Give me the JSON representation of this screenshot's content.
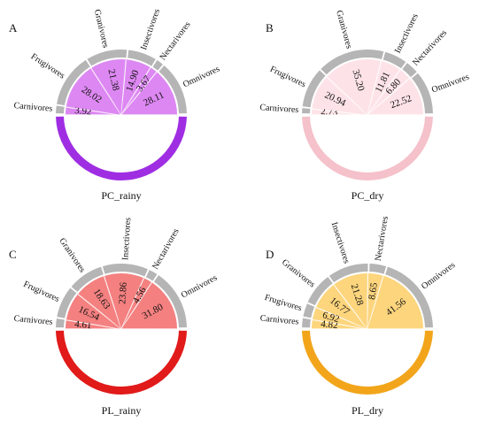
{
  "figure": {
    "categories": [
      "Carnivores",
      "Frugivores",
      "Granivores",
      "Insectivores",
      "Nectarivores",
      "Omnivores"
    ]
  },
  "chart_data": [
    {
      "type": "pie",
      "panel": "A",
      "title": "PC_rainy",
      "fill_color": "#dd88f2",
      "band_color": "#9f2ee3",
      "categories": [
        "Carnivores",
        "Frugivores",
        "Granivores",
        "Insectivores",
        "Nectarivores",
        "Omnivores"
      ],
      "value_labels": [
        "3.92",
        "28.02",
        "21.38",
        "14.90",
        "3.67",
        "28.11"
      ],
      "values": [
        3.92,
        28.02,
        21.38,
        14.9,
        3.67,
        28.11
      ]
    },
    {
      "type": "pie",
      "panel": "B",
      "title": "PC_dry",
      "fill_color": "#fde3e7",
      "band_color": "#f5c1ca",
      "categories": [
        "Carnivores",
        "Frugivores",
        "Granivores",
        "Insectivores",
        "Nectarivores",
        "Omnivores"
      ],
      "value_labels": [
        "2.73",
        "20.94",
        "35.20",
        "11.81",
        "6.80",
        "22.52"
      ],
      "values": [
        2.73,
        20.94,
        35.2,
        11.81,
        6.8,
        22.52
      ]
    },
    {
      "type": "pie",
      "panel": "C",
      "title": "PL_rainy",
      "fill_color": "#f48080",
      "band_color": "#e11a1a",
      "categories": [
        "Carnivores",
        "Frugivores",
        "Granivores",
        "Insectivores",
        "Nectarivores",
        "Omnivores"
      ],
      "value_labels": [
        "4.61",
        "16.54",
        "18.63",
        "23.86",
        "4.56",
        "31.80"
      ],
      "values": [
        4.61,
        16.54,
        18.63,
        23.86,
        4.56,
        31.8
      ]
    },
    {
      "type": "pie",
      "panel": "D",
      "title": "PL_dry",
      "fill_color": "#fdd57d",
      "band_color": "#f2a51b",
      "categories": [
        "Carnivores",
        "Frugivores",
        "Granivores",
        "Insectivores",
        "Nectarivores",
        "Omnivores"
      ],
      "value_labels": [
        "4.82",
        "6.92",
        "16.77",
        "21.28",
        "8.65",
        "41.56"
      ],
      "values": [
        4.82,
        6.92,
        16.77,
        21.28,
        8.65,
        41.56
      ]
    }
  ]
}
